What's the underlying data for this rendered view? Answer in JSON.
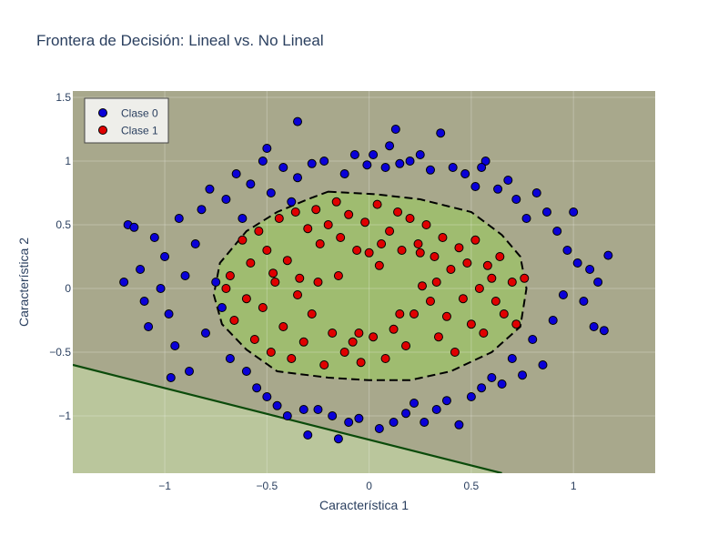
{
  "chart_data": {
    "type": "scatter",
    "title": "Frontera de Decisión: Lineal vs. No Lineal",
    "xlabel": "Característica 1",
    "ylabel": "Característica 2",
    "xlim": [
      -1.45,
      1.4
    ],
    "ylim": [
      -1.45,
      1.55
    ],
    "x_ticks": [
      -1,
      -0.5,
      0,
      0.5,
      1
    ],
    "y_ticks": [
      -1,
      -0.5,
      0,
      0.5,
      1,
      1.5
    ],
    "x_tick_labels": [
      "−1",
      "−0.5",
      "0",
      "0.5",
      "1"
    ],
    "y_tick_labels": [
      "−1",
      "−0.5",
      "0",
      "0.5",
      "1",
      "1.5"
    ],
    "grid": true,
    "legend_position": "top-left",
    "colors": {
      "background": "#a8a88c",
      "linear_region": "#bac69c",
      "nonlinear_region": "#9fbc70",
      "linear_boundary": "#0a4a0a",
      "nonlinear_boundary": "#000000",
      "clase0": "#0a00d8",
      "clase1": "#e00000",
      "title": "#2a3f5f"
    },
    "linear_boundary": {
      "points": [
        [
          -1.45,
          -0.6
        ],
        [
          0.65,
          -1.45
        ]
      ],
      "style": "solid"
    },
    "nonlinear_boundary": {
      "style": "dashed",
      "points": [
        [
          -0.2,
          0.76
        ],
        [
          0.03,
          0.74
        ],
        [
          0.25,
          0.7
        ],
        [
          0.5,
          0.6
        ],
        [
          0.65,
          0.42
        ],
        [
          0.74,
          0.25
        ],
        [
          0.77,
          0.0
        ],
        [
          0.74,
          -0.3
        ],
        [
          0.6,
          -0.5
        ],
        [
          0.4,
          -0.65
        ],
        [
          0.2,
          -0.72
        ],
        [
          0.0,
          -0.72
        ],
        [
          -0.2,
          -0.7
        ],
        [
          -0.45,
          -0.65
        ],
        [
          -0.6,
          -0.48
        ],
        [
          -0.72,
          -0.28
        ],
        [
          -0.76,
          -0.05
        ],
        [
          -0.73,
          0.2
        ],
        [
          -0.6,
          0.45
        ],
        [
          -0.45,
          0.6
        ],
        [
          -0.3,
          0.7
        ]
      ]
    },
    "series": [
      {
        "name": "Clase 0",
        "color": "#0a00d8",
        "points": [
          [
            -1.2,
            0.05
          ],
          [
            -1.18,
            0.5
          ],
          [
            -1.15,
            0.48
          ],
          [
            -1.12,
            0.15
          ],
          [
            -1.1,
            -0.1
          ],
          [
            -1.08,
            -0.3
          ],
          [
            -1.05,
            0.4
          ],
          [
            -1.02,
            0.0
          ],
          [
            -1.0,
            0.25
          ],
          [
            -0.98,
            -0.2
          ],
          [
            -0.95,
            -0.45
          ],
          [
            -0.93,
            0.55
          ],
          [
            -0.9,
            0.1
          ],
          [
            -0.88,
            -0.65
          ],
          [
            -0.85,
            0.35
          ],
          [
            -0.82,
            0.62
          ],
          [
            -0.8,
            -0.35
          ],
          [
            -0.78,
            0.78
          ],
          [
            -0.75,
            0.05
          ],
          [
            -0.72,
            -0.15
          ],
          [
            -0.7,
            0.7
          ],
          [
            -0.68,
            -0.55
          ],
          [
            -0.65,
            0.9
          ],
          [
            -0.62,
            0.55
          ],
          [
            -0.6,
            -0.65
          ],
          [
            -0.58,
            0.82
          ],
          [
            -0.55,
            -0.78
          ],
          [
            -0.52,
            1.0
          ],
          [
            -0.5,
            -0.85
          ],
          [
            -0.48,
            0.75
          ],
          [
            -0.45,
            -0.92
          ],
          [
            -0.42,
            0.95
          ],
          [
            -0.4,
            -1.0
          ],
          [
            -0.38,
            0.68
          ],
          [
            -0.35,
            0.87
          ],
          [
            -0.32,
            -0.95
          ],
          [
            -0.3,
            -1.15
          ],
          [
            -0.28,
            0.98
          ],
          [
            -0.25,
            -0.95
          ],
          [
            -0.22,
            1.0
          ],
          [
            -0.18,
            -1.0
          ],
          [
            -0.15,
            -1.18
          ],
          [
            -0.12,
            0.9
          ],
          [
            -0.1,
            -1.05
          ],
          [
            -0.07,
            1.05
          ],
          [
            -0.05,
            -1.02
          ],
          [
            -0.01,
            0.97
          ],
          [
            0.02,
            1.05
          ],
          [
            0.05,
            -1.1
          ],
          [
            0.08,
            0.95
          ],
          [
            0.1,
            1.12
          ],
          [
            0.12,
            -1.05
          ],
          [
            0.15,
            0.98
          ],
          [
            0.18,
            -0.98
          ],
          [
            0.2,
            1.0
          ],
          [
            0.22,
            -0.9
          ],
          [
            0.25,
            1.05
          ],
          [
            0.27,
            -1.05
          ],
          [
            0.3,
            0.93
          ],
          [
            0.33,
            -0.95
          ],
          [
            0.35,
            1.22
          ],
          [
            0.38,
            -0.88
          ],
          [
            0.41,
            0.95
          ],
          [
            0.44,
            -1.07
          ],
          [
            0.47,
            0.9
          ],
          [
            0.5,
            -0.85
          ],
          [
            0.52,
            0.8
          ],
          [
            0.55,
            -0.78
          ],
          [
            0.57,
            1.0
          ],
          [
            0.6,
            -0.7
          ],
          [
            0.63,
            0.78
          ],
          [
            0.65,
            -0.75
          ],
          [
            0.68,
            0.85
          ],
          [
            0.7,
            -0.55
          ],
          [
            0.72,
            0.7
          ],
          [
            0.75,
            -0.68
          ],
          [
            0.77,
            0.55
          ],
          [
            0.8,
            -0.4
          ],
          [
            0.82,
            0.75
          ],
          [
            0.85,
            -0.6
          ],
          [
            0.87,
            0.6
          ],
          [
            0.9,
            -0.25
          ],
          [
            0.92,
            0.45
          ],
          [
            0.95,
            -0.05
          ],
          [
            0.97,
            0.3
          ],
          [
            1.0,
            0.6
          ],
          [
            1.02,
            0.2
          ],
          [
            1.05,
            -0.1
          ],
          [
            1.08,
            0.15
          ],
          [
            1.1,
            -0.3
          ],
          [
            1.12,
            0.05
          ],
          [
            1.15,
            -0.33
          ],
          [
            1.17,
            0.26
          ],
          [
            -0.35,
            1.31
          ],
          [
            0.13,
            1.25
          ],
          [
            -0.97,
            -0.7
          ],
          [
            -0.5,
            1.1
          ],
          [
            0.55,
            0.95
          ]
        ]
      },
      {
        "name": "Clase 1",
        "color": "#e00000",
        "points": [
          [
            -0.68,
            0.1
          ],
          [
            -0.66,
            -0.25
          ],
          [
            -0.62,
            0.38
          ],
          [
            -0.6,
            -0.08
          ],
          [
            -0.58,
            0.2
          ],
          [
            -0.56,
            -0.4
          ],
          [
            -0.54,
            0.45
          ],
          [
            -0.52,
            -0.15
          ],
          [
            -0.5,
            0.3
          ],
          [
            -0.48,
            -0.5
          ],
          [
            -0.46,
            0.05
          ],
          [
            -0.44,
            0.55
          ],
          [
            -0.42,
            -0.3
          ],
          [
            -0.4,
            0.22
          ],
          [
            -0.38,
            -0.55
          ],
          [
            -0.36,
            0.6
          ],
          [
            -0.34,
            0.08
          ],
          [
            -0.32,
            -0.42
          ],
          [
            -0.3,
            0.47
          ],
          [
            -0.28,
            -0.2
          ],
          [
            -0.26,
            0.62
          ],
          [
            -0.24,
            0.35
          ],
          [
            -0.22,
            -0.6
          ],
          [
            -0.2,
            0.5
          ],
          [
            -0.18,
            -0.35
          ],
          [
            -0.16,
            0.68
          ],
          [
            -0.14,
            0.4
          ],
          [
            -0.12,
            -0.5
          ],
          [
            -0.1,
            0.58
          ],
          [
            -0.08,
            -0.42
          ],
          [
            -0.06,
            0.3
          ],
          [
            -0.04,
            -0.58
          ],
          [
            -0.02,
            0.52
          ],
          [
            0.0,
            0.28
          ],
          [
            0.02,
            -0.38
          ],
          [
            0.04,
            0.66
          ],
          [
            0.06,
            0.35
          ],
          [
            0.08,
            -0.55
          ],
          [
            0.1,
            0.45
          ],
          [
            0.12,
            -0.32
          ],
          [
            0.14,
            0.6
          ],
          [
            0.16,
            0.3
          ],
          [
            0.18,
            -0.45
          ],
          [
            0.2,
            0.55
          ],
          [
            0.22,
            -0.2
          ],
          [
            0.24,
            0.35
          ],
          [
            0.26,
            0.02
          ],
          [
            0.28,
            0.5
          ],
          [
            0.3,
            -0.1
          ],
          [
            0.32,
            0.25
          ],
          [
            0.34,
            -0.38
          ],
          [
            0.36,
            0.4
          ],
          [
            0.38,
            -0.22
          ],
          [
            0.4,
            0.15
          ],
          [
            0.42,
            -0.5
          ],
          [
            0.44,
            0.32
          ],
          [
            0.46,
            -0.08
          ],
          [
            0.48,
            0.2
          ],
          [
            0.5,
            -0.28
          ],
          [
            0.52,
            0.38
          ],
          [
            0.54,
            0.0
          ],
          [
            0.56,
            -0.35
          ],
          [
            0.58,
            0.18
          ],
          [
            0.6,
            0.08
          ],
          [
            0.62,
            -0.1
          ],
          [
            0.64,
            0.25
          ],
          [
            0.66,
            -0.2
          ],
          [
            0.7,
            0.05
          ],
          [
            0.72,
            -0.28
          ],
          [
            0.76,
            0.08
          ],
          [
            -0.7,
            0.0
          ],
          [
            -0.47,
            0.12
          ],
          [
            -0.25,
            0.05
          ],
          [
            -0.05,
            -0.35
          ],
          [
            0.15,
            -0.2
          ],
          [
            0.33,
            0.05
          ],
          [
            -0.35,
            -0.05
          ],
          [
            0.05,
            0.18
          ],
          [
            -0.15,
            0.1
          ],
          [
            0.25,
            0.28
          ]
        ]
      }
    ]
  }
}
